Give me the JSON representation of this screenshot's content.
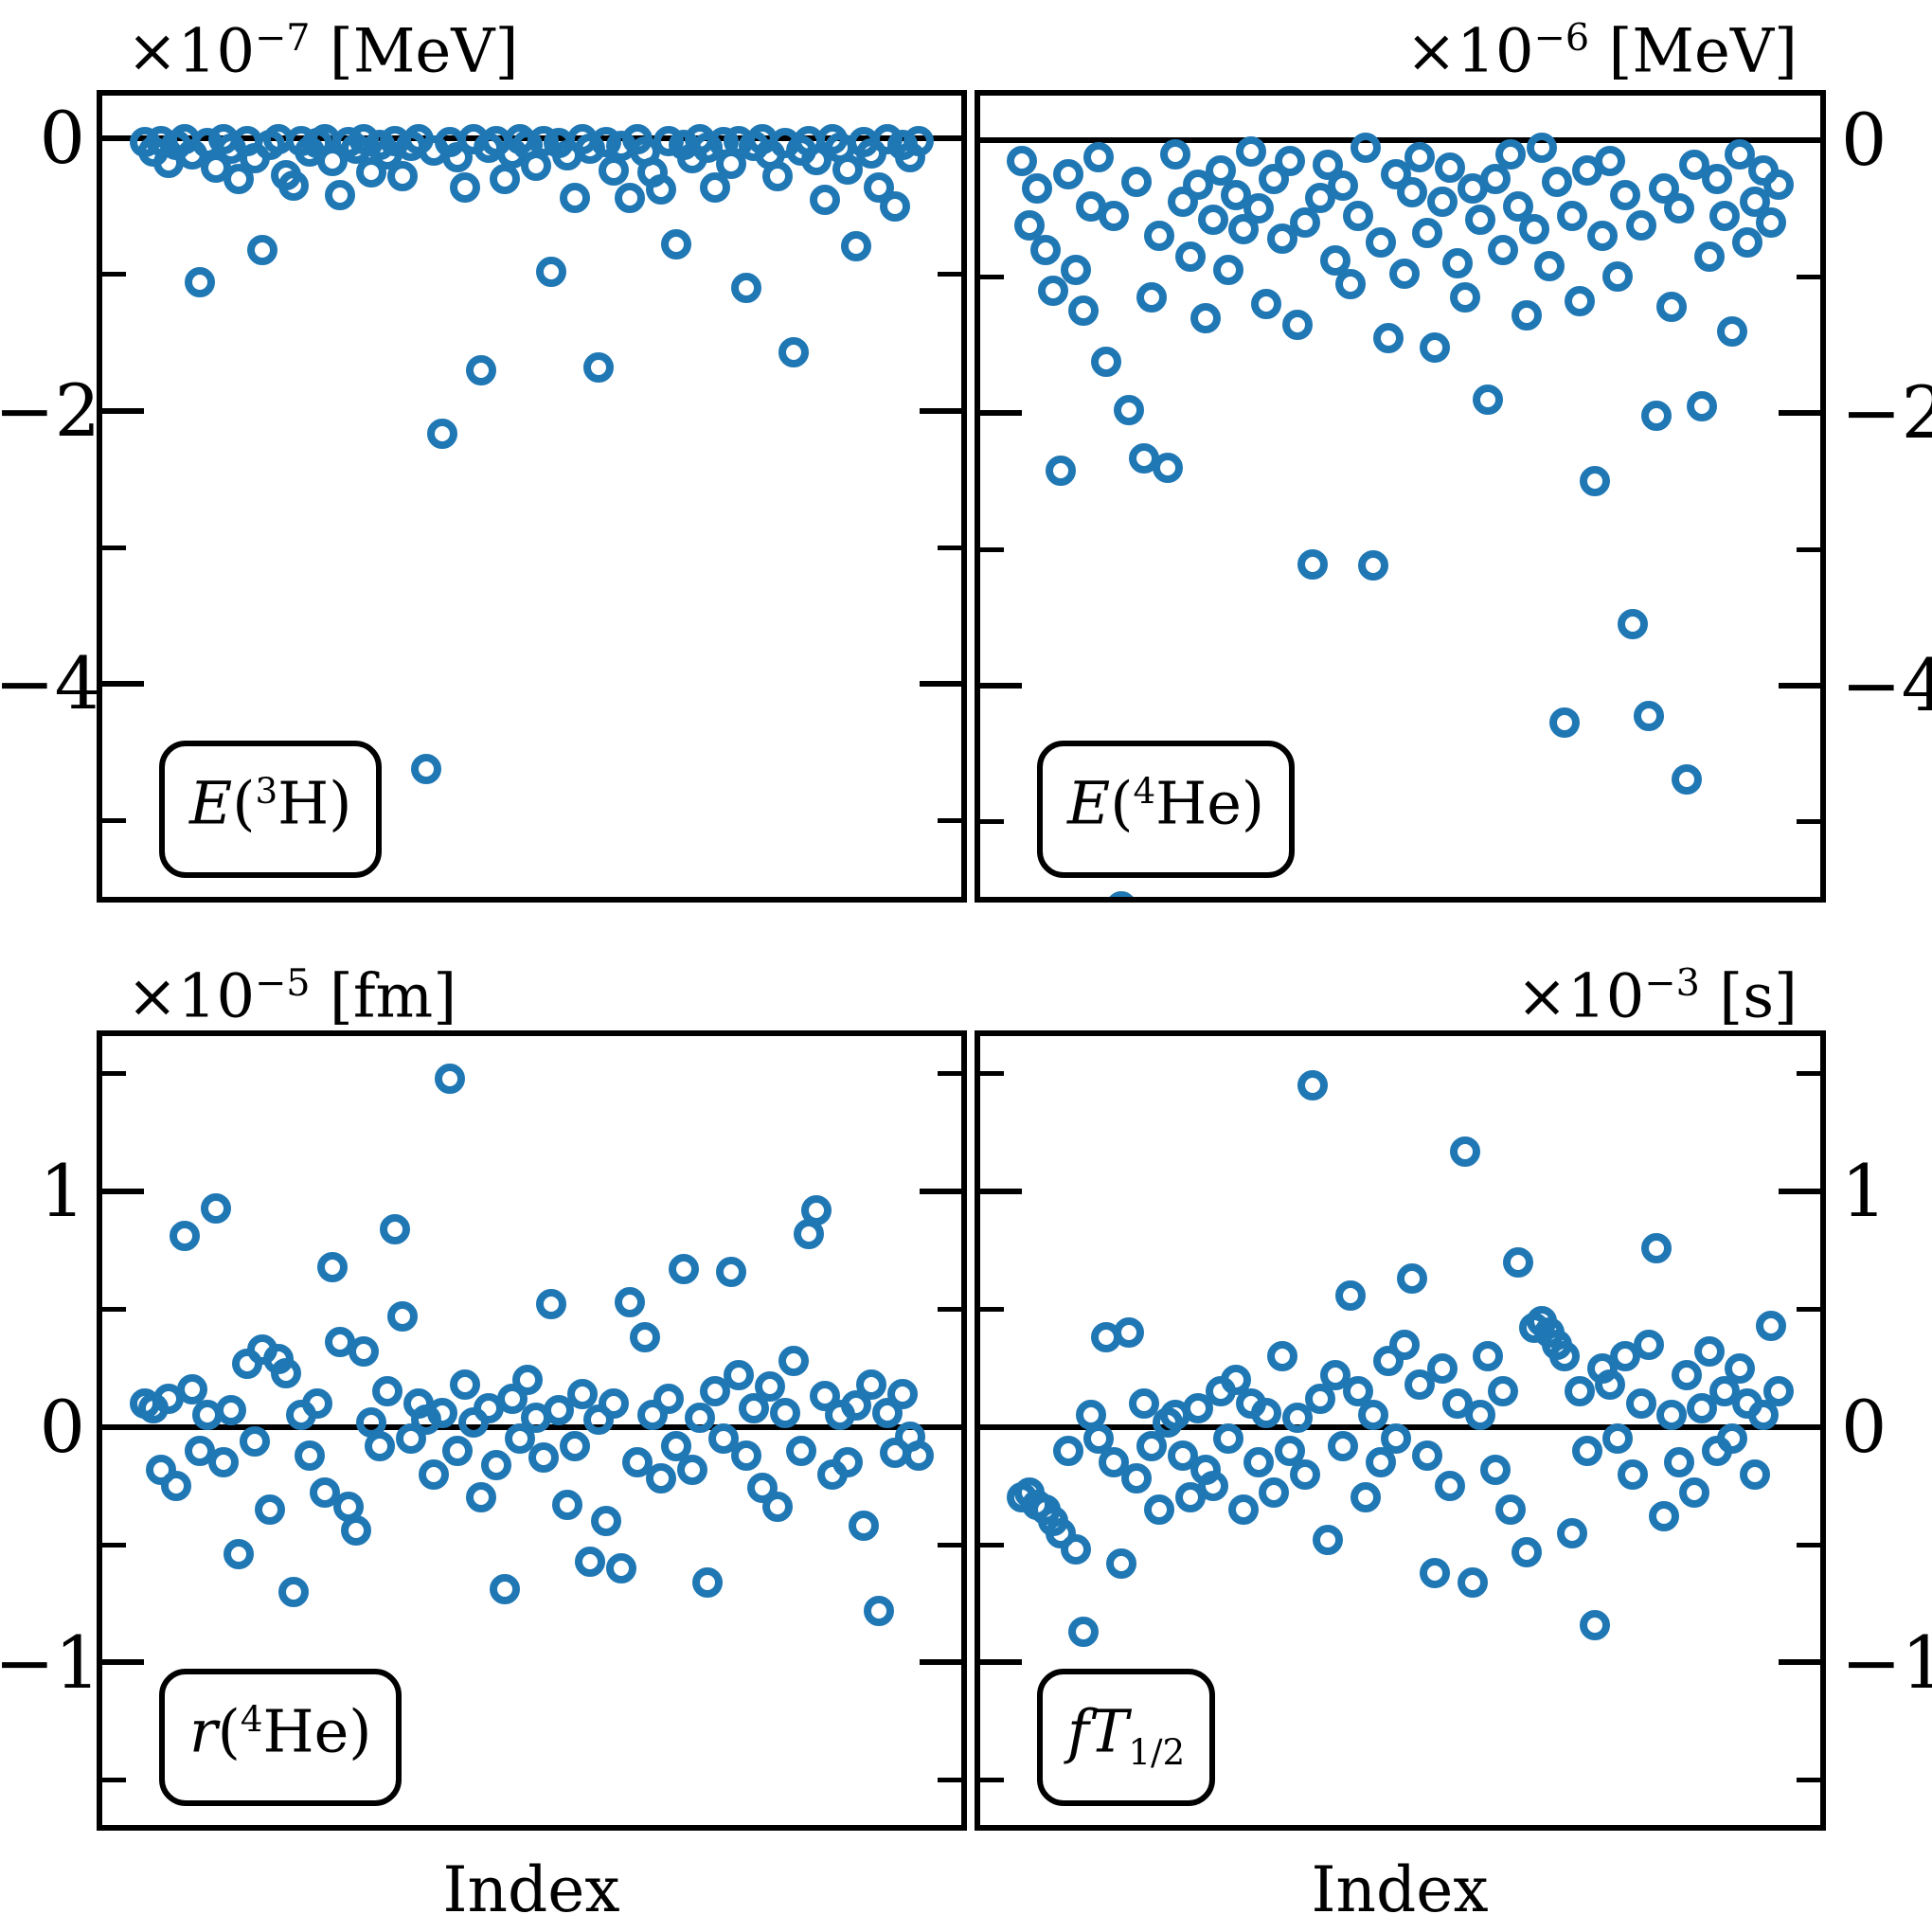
{
  "figure": {
    "background": "#ffffff",
    "axis_color": "#000000",
    "xlabel": "Index"
  },
  "chart_data": {
    "type": "scatter",
    "layout": "2x2-grid",
    "xlabel": "Index",
    "grid": false,
    "legend": "none",
    "marker": {
      "shape": "open-circle",
      "color": "#1f77b4"
    },
    "panels": [
      {
        "name": "E(3H)",
        "offset": {
          "prefix": "×10",
          "exp": "−7",
          "unit": " [MeV]"
        },
        "box": {
          "italic": "E",
          "open": "(",
          "sup": "3",
          "sym": "H",
          "close": ")",
          "sub": ""
        },
        "ytick_labels": [
          "0",
          "−2",
          "−4"
        ],
        "yticks_major": [
          0,
          -2,
          -4
        ],
        "yticks_minor": [
          -1,
          -3,
          -5
        ],
        "ylim": [
          -5.56,
          0.31
        ],
        "xlim": [
          -4.5,
          105.5
        ],
        "zero_line": true,
        "y": [
          -0.03,
          -0.1,
          -0.02,
          -0.18,
          -0.05,
          -0.01,
          -0.12,
          -1.06,
          -0.04,
          -0.22,
          -0.01,
          -0.08,
          -0.3,
          -0.02,
          -0.15,
          -0.82,
          -0.05,
          -0.01,
          -0.27,
          -0.35,
          -0.02,
          -0.1,
          -0.04,
          -0.01,
          -0.17,
          -0.42,
          -0.03,
          -0.08,
          -0.01,
          -0.25,
          -0.05,
          -0.12,
          -0.02,
          -0.28,
          -0.06,
          -0.01,
          -4.62,
          -0.09,
          -2.17,
          -0.03,
          -0.14,
          -0.36,
          -0.01,
          -1.7,
          -0.07,
          -0.02,
          -0.3,
          -0.11,
          -0.01,
          -0.05,
          -0.2,
          -0.02,
          -0.98,
          -0.04,
          -0.13,
          -0.44,
          -0.01,
          -0.08,
          -1.68,
          -0.03,
          -0.24,
          -0.06,
          -0.44,
          -0.01,
          -0.1,
          -0.25,
          -0.38,
          -0.02,
          -0.78,
          -0.05,
          -0.15,
          -0.01,
          -0.07,
          -0.36,
          -0.03,
          -0.19,
          -0.02,
          -1.1,
          -0.06,
          -0.01,
          -0.12,
          -0.28,
          -0.04,
          -1.57,
          -0.09,
          -0.02,
          -0.16,
          -0.45,
          -0.01,
          -0.07,
          -0.23,
          -0.79,
          -0.03,
          -0.11,
          -0.36,
          -0.01,
          -0.5,
          -0.05,
          -0.14,
          -0.02
        ]
      },
      {
        "name": "E(4He)",
        "offset": {
          "prefix": "×10",
          "exp": "−6",
          "unit": " [MeV]"
        },
        "box": {
          "italic": "E",
          "open": "(",
          "sup": "4",
          "sym": "He",
          "close": ")",
          "sub": ""
        },
        "ytick_labels": [
          "0",
          "−2",
          "−4"
        ],
        "yticks_major": [
          0,
          -2,
          -4
        ],
        "yticks_minor": [
          -1,
          -3,
          -5
        ],
        "ylim": [
          -5.55,
          0.33
        ],
        "xlim": [
          -4.5,
          105.5
        ],
        "zero_line": true,
        "y": [
          -0.15,
          -0.62,
          -0.35,
          -0.8,
          -1.1,
          -2.42,
          -0.25,
          -0.95,
          -1.25,
          -0.48,
          -0.12,
          -1.62,
          -0.55,
          -5.62,
          -1.98,
          -0.3,
          -2.33,
          -1.15,
          -0.7,
          -2.4,
          -0.1,
          -0.45,
          -0.85,
          -0.32,
          -1.3,
          -0.58,
          -0.22,
          -0.95,
          -0.4,
          -0.65,
          -0.08,
          -0.5,
          -1.2,
          -0.28,
          -0.72,
          -0.15,
          -1.35,
          -0.6,
          -3.11,
          -0.42,
          -0.18,
          -0.88,
          -0.33,
          -1.05,
          -0.55,
          -0.05,
          -3.12,
          -0.75,
          -1.45,
          -0.25,
          -0.98,
          -0.38,
          -0.12,
          -0.68,
          -1.52,
          -0.45,
          -0.2,
          -0.9,
          -1.15,
          -0.35,
          -0.58,
          -1.9,
          -0.28,
          -0.8,
          -0.1,
          -0.48,
          -1.28,
          -0.65,
          -0.05,
          -0.92,
          -0.3,
          -4.27,
          -0.55,
          -1.18,
          -0.22,
          -2.5,
          -0.7,
          -0.15,
          -1.0,
          -0.4,
          -3.55,
          -0.62,
          -4.22,
          -2.02,
          -0.35,
          -1.22,
          -0.5,
          -4.69,
          -0.18,
          -1.95,
          -0.85,
          -0.28,
          -0.55,
          -1.4,
          -0.1,
          -0.75,
          -0.45,
          -0.22,
          -0.6,
          -0.32
        ]
      },
      {
        "name": "r(4He)",
        "offset": {
          "prefix": "×10",
          "exp": "−5",
          "unit": " [fm]"
        },
        "box": {
          "italic": "r",
          "open": "(",
          "sup": "4",
          "sym": "He",
          "close": ")",
          "sub": ""
        },
        "ytick_labels": [
          "1",
          "0",
          "−1"
        ],
        "yticks_major": [
          1,
          0,
          -1
        ],
        "yticks_minor": [
          1.5,
          0.5,
          -0.5,
          -1.5
        ],
        "ylim": [
          -1.69,
          1.66
        ],
        "xlim": [
          -4.5,
          105.5
        ],
        "zero_line": true,
        "y": [
          0.1,
          0.08,
          -0.18,
          0.12,
          -0.25,
          0.81,
          0.16,
          -0.1,
          0.05,
          0.93,
          -0.15,
          0.07,
          -0.54,
          0.27,
          -0.06,
          0.33,
          -0.35,
          0.29,
          0.23,
          -0.7,
          0.05,
          -0.12,
          0.1,
          -0.28,
          0.68,
          0.36,
          -0.34,
          -0.44,
          0.32,
          0.02,
          -0.08,
          0.15,
          0.84,
          0.47,
          -0.05,
          0.1,
          0.03,
          -0.2,
          0.06,
          1.48,
          -0.1,
          0.18,
          0.02,
          -0.3,
          0.08,
          -0.16,
          -0.69,
          0.12,
          -0.05,
          0.2,
          0.04,
          -0.13,
          0.52,
          0.07,
          -0.33,
          -0.08,
          0.14,
          -0.57,
          0.03,
          -0.4,
          0.1,
          -0.6,
          0.53,
          -0.15,
          0.38,
          0.05,
          -0.22,
          0.12,
          -0.08,
          0.67,
          -0.18,
          0.04,
          -0.66,
          0.15,
          -0.05,
          0.66,
          0.22,
          -0.12,
          0.08,
          -0.26,
          0.17,
          -0.34,
          0.06,
          0.28,
          -0.1,
          0.82,
          0.92,
          0.13,
          -0.2,
          0.05,
          -0.15,
          0.09,
          -0.42,
          0.18,
          -0.78,
          0.06,
          -0.11,
          0.14,
          -0.04,
          -0.12
        ]
      },
      {
        "name": "fT1/2",
        "offset": {
          "prefix": "×10",
          "exp": "−3",
          "unit": " [s]"
        },
        "box": {
          "italic": "fT",
          "open": "",
          "sup": "",
          "sym": "",
          "close": "",
          "sub": "1/2"
        },
        "ytick_labels": [
          "1",
          "0",
          "−1"
        ],
        "yticks_major": [
          1,
          0,
          -1
        ],
        "yticks_minor": [
          1.5,
          0.5,
          -0.5,
          -1.5
        ],
        "ylim": [
          -1.69,
          1.66
        ],
        "xlim": [
          -4.5,
          105.5
        ],
        "zero_line": true,
        "y": [
          -0.3,
          -0.28,
          -0.33,
          -0.35,
          -0.4,
          -0.45,
          -0.1,
          -0.52,
          -0.87,
          0.05,
          -0.05,
          0.38,
          -0.15,
          -0.58,
          0.4,
          -0.22,
          0.1,
          -0.08,
          -0.35,
          0.02,
          0.05,
          -0.12,
          -0.3,
          0.08,
          -0.18,
          -0.25,
          0.15,
          -0.05,
          0.2,
          -0.35,
          0.1,
          -0.15,
          0.06,
          -0.28,
          0.3,
          -0.1,
          0.04,
          -0.2,
          1.45,
          0.12,
          -0.48,
          0.22,
          -0.08,
          0.56,
          0.15,
          -0.3,
          0.05,
          -0.15,
          0.28,
          -0.05,
          0.35,
          0.63,
          0.18,
          -0.12,
          -0.62,
          0.25,
          -0.25,
          0.1,
          1.17,
          -0.66,
          0.05,
          0.3,
          -0.18,
          0.15,
          -0.35,
          0.7,
          -0.53,
          0.42,
          0.45,
          0.4,
          0.35,
          0.3,
          -0.45,
          0.15,
          -0.1,
          -0.84,
          0.25,
          0.18,
          -0.05,
          0.3,
          -0.2,
          0.1,
          0.35,
          0.76,
          -0.38,
          0.05,
          -0.15,
          0.22,
          -0.28,
          0.08,
          0.32,
          -0.1,
          0.15,
          -0.05,
          0.25,
          0.1,
          -0.2,
          0.05,
          0.43,
          0.15
        ]
      }
    ]
  }
}
